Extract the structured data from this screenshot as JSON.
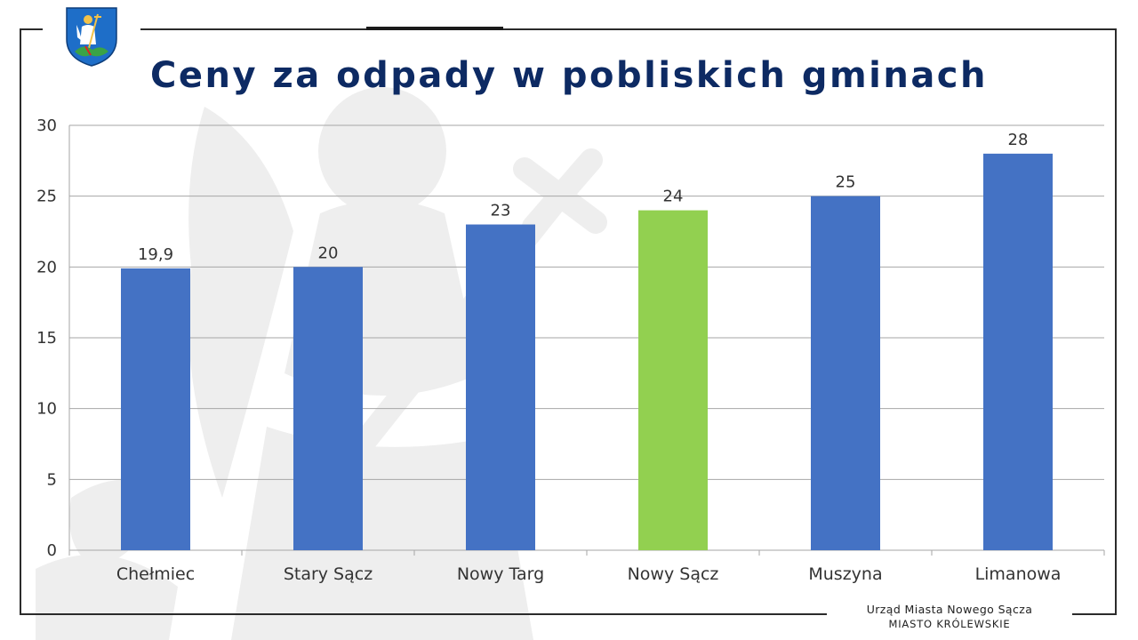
{
  "slide": {
    "title": "Ceny za odpady w pobliskich gminach",
    "footer_line1": "Urząd Miasta Nowego Sącza",
    "footer_line2": "MIASTO KRÓLEWSKIE",
    "crest_icon": "city-coat-of-arms-icon",
    "watermark_icon": "angel-with-cross-watermark-icon"
  },
  "colors": {
    "title": "#0d2a63",
    "bar_default": "#4472c4",
    "bar_highlight": "#92d050",
    "gridline": "#a6a6a6",
    "crest_blue": "#1e6ec8",
    "crest_green": "#3aa346"
  },
  "chart_data": {
    "type": "bar",
    "title": "Ceny za odpady w pobliskich gminach",
    "xlabel": "",
    "ylabel": "",
    "categories": [
      "Chełmiec",
      "Stary Sącz",
      "Nowy Targ",
      "Nowy Sącz",
      "Muszyna",
      "Limanowa"
    ],
    "values": [
      19.9,
      20,
      23,
      24,
      25,
      28
    ],
    "data_labels": [
      "19,9",
      "20",
      "23",
      "24",
      "25",
      "28"
    ],
    "highlight_index": 3,
    "ylim": [
      0,
      30
    ],
    "yticks": [
      0,
      5,
      10,
      15,
      20,
      25,
      30
    ],
    "grid": true,
    "legend": "none"
  }
}
